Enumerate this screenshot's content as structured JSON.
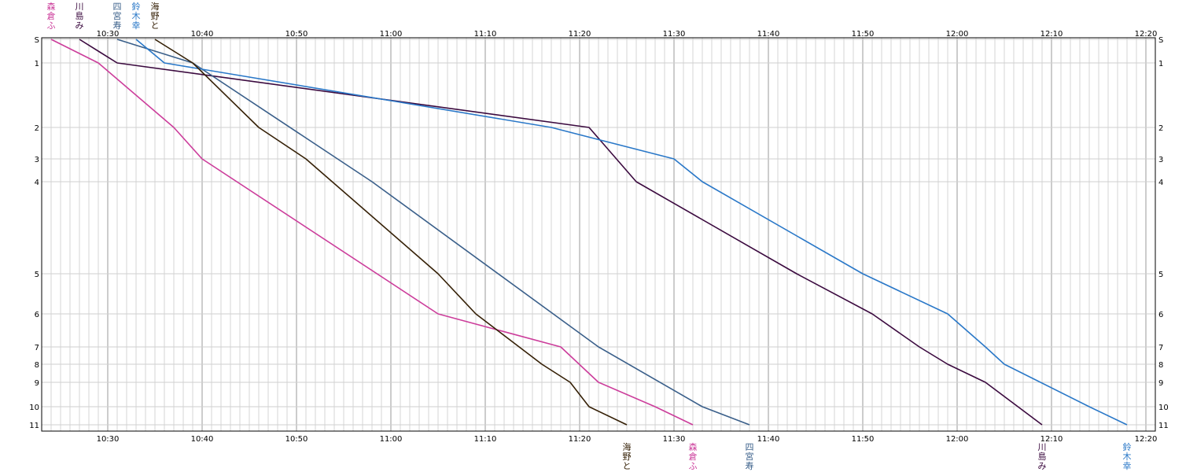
{
  "chart_data": {
    "type": "line",
    "title": "",
    "xlabel": "",
    "ylabel": "",
    "x_ticks": [
      "10:30",
      "10:40",
      "10:50",
      "11:00",
      "11:10",
      "11:20",
      "11:30",
      "11:40",
      "11:50",
      "12:00",
      "12:10",
      "12:20"
    ],
    "y_ticks": [
      "S",
      "1",
      "2",
      "3",
      "4",
      "5",
      "6",
      "7",
      "8",
      "9",
      "10",
      "11"
    ],
    "y_scale_note": "stations unevenly spaced",
    "xlim": [
      "10:23",
      "12:21"
    ],
    "grid": true,
    "series": [
      {
        "name": "森倉ふ",
        "color": "#cc3d9b",
        "points": [
          [
            "10:24",
            "S"
          ],
          [
            "10:29",
            "1"
          ],
          [
            "10:37",
            "2"
          ],
          [
            "10:40",
            "3"
          ],
          [
            "11:05",
            "6"
          ],
          [
            "11:18",
            "7"
          ],
          [
            "11:22",
            "9"
          ],
          [
            "11:28",
            "10"
          ],
          [
            "11:32",
            "11"
          ]
        ]
      },
      {
        "name": "川島み",
        "color": "#3b0a3f",
        "points": [
          [
            "10:27",
            "S"
          ],
          [
            "10:31",
            "1"
          ],
          [
            "11:21",
            "2"
          ],
          [
            "11:26",
            "4"
          ],
          [
            "11:43",
            "5"
          ],
          [
            "11:51",
            "6"
          ],
          [
            "11:56",
            "7"
          ],
          [
            "11:59",
            "8"
          ],
          [
            "12:03",
            "9"
          ],
          [
            "12:09",
            "11"
          ]
        ]
      },
      {
        "name": "四宮寿",
        "color": "#3a5f8a",
        "points": [
          [
            "10:31",
            "S"
          ],
          [
            "10:39",
            "1"
          ],
          [
            "10:58",
            "4"
          ],
          [
            "11:22",
            "7"
          ],
          [
            "11:33",
            "10"
          ],
          [
            "11:38",
            "11"
          ]
        ]
      },
      {
        "name": "鈴木幸",
        "color": "#2a78c8",
        "points": [
          [
            "10:33",
            "S"
          ],
          [
            "10:36",
            "1"
          ],
          [
            "11:17",
            "2"
          ],
          [
            "11:30",
            "3"
          ],
          [
            "11:33",
            "4"
          ],
          [
            "11:50",
            "5"
          ],
          [
            "11:59",
            "6"
          ],
          [
            "12:03",
            "7"
          ],
          [
            "12:05",
            "8"
          ],
          [
            "12:14",
            "10"
          ],
          [
            "12:18",
            "11"
          ]
        ]
      },
      {
        "name": "海野と",
        "color": "#352006",
        "points": [
          [
            "10:35",
            "S"
          ],
          [
            "10:39",
            "1"
          ],
          [
            "10:46",
            "2"
          ],
          [
            "10:51",
            "3"
          ],
          [
            "11:05",
            "5"
          ],
          [
            "11:09",
            "6"
          ],
          [
            "11:16",
            "8"
          ],
          [
            "11:19",
            "9"
          ],
          [
            "11:21",
            "10"
          ],
          [
            "11:25",
            "11"
          ]
        ]
      }
    ]
  }
}
